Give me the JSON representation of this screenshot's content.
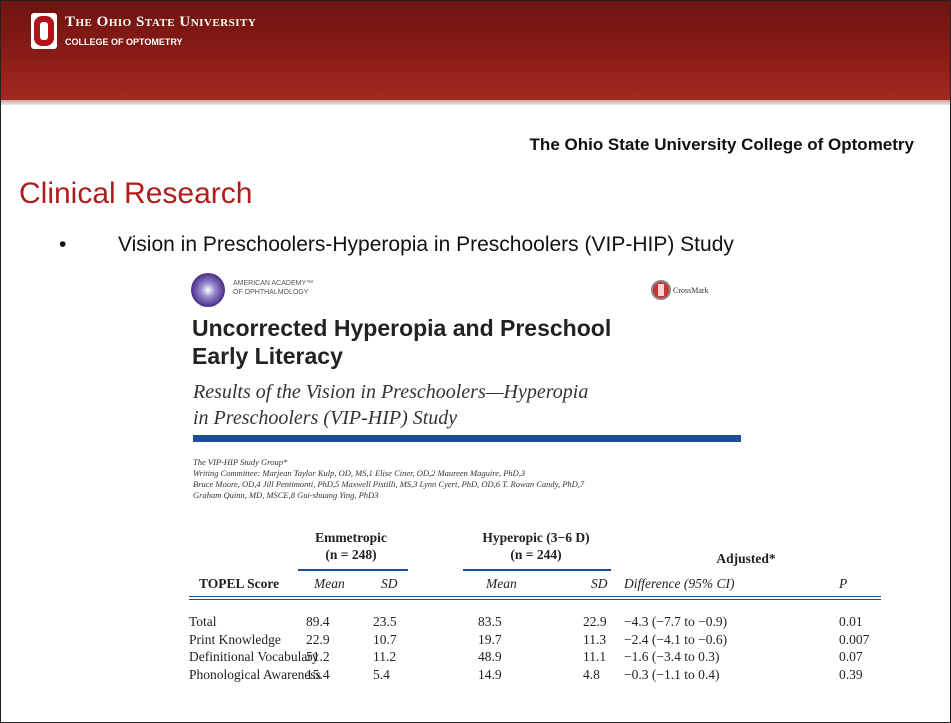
{
  "header": {
    "university": "The Ohio State University",
    "college": "COLLEGE OF OPTOMETRY"
  },
  "subtitle": "The Ohio State University College of Optometry",
  "title": "Clinical Research",
  "bullets": [
    "Vision in Preschoolers-Hyperopia in Preschoolers (VIP-HIP) Study"
  ],
  "paper": {
    "publisher_line1": "AMERICAN ACADEMY™",
    "publisher_line2": "OF OPHTHALMOLOGY",
    "crossmark": "CrossMark",
    "title_lines": [
      "Uncorrected Hyperopia and Preschool",
      "Early Literacy"
    ],
    "subtitle_lines": [
      "Results of the Vision in Preschoolers—Hyperopia",
      "in Preschoolers (VIP-HIP) Study"
    ],
    "authors": [
      "The VIP-HIP Study Group*",
      "Writing Committee: Marjean Taylor Kulp, OD, MS,1 Elise Ciner, OD,2 Maureen Maguire, PhD,3",
      "Bruce Moore, OD,4 Jill Pentimonti, PhD,5 Maxwell Pistilli, MS,3 Lynn Cyert, PhD, OD,6 T. Rowan Candy, PhD,7",
      "Graham Quinn, MD, MSCE,8 Gui-shuang Ying, PhD3"
    ],
    "table": {
      "groups": [
        {
          "name": "Emmetropic",
          "n": "(n = 248)"
        },
        {
          "name": "Hyperopic (3−6 D)",
          "n": "(n = 244)"
        },
        {
          "name": "Adjusted*"
        }
      ],
      "columns": [
        "TOPEL Score",
        "Mean",
        "SD",
        "Mean",
        "SD",
        "Difference (95% CI)",
        "P"
      ],
      "rows": [
        [
          "Total",
          "89.4",
          "23.5",
          "83.5",
          "22.9",
          "−4.3 (−7.7 to −0.9)",
          "0.01"
        ],
        [
          "Print Knowledge",
          "22.9",
          "10.7",
          "19.7",
          "11.3",
          "−2.4 (−4.1 to −0.6)",
          "0.007"
        ],
        [
          "Definitional Vocabulary",
          "51.2",
          "11.2",
          "48.9",
          "11.1",
          "−1.6 (−3.4 to 0.3)",
          "0.07"
        ],
        [
          "Phonological Awareness",
          "15.4",
          "5.4",
          "14.9",
          "4.8",
          "−0.3 (−1.1 to 0.4)",
          "0.39"
        ]
      ]
    }
  }
}
